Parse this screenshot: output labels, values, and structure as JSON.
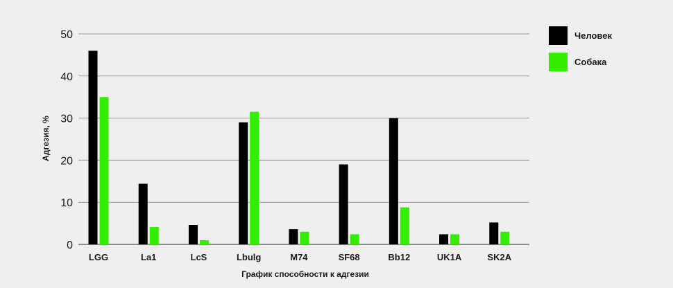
{
  "chart_data": {
    "type": "bar",
    "categories": [
      "LGG",
      "La1",
      "LcS",
      "Lbulg",
      "M74",
      "SF68",
      "Bb12",
      "UK1A",
      "SK2A"
    ],
    "series": [
      {
        "name": "Человек",
        "color": "#000000",
        "values": [
          46,
          14.4,
          4.6,
          29,
          3.6,
          19,
          30,
          2.4,
          5.2
        ]
      },
      {
        "name": "Собака",
        "color": "#33ee00",
        "values": [
          35,
          4.1,
          1.0,
          31.5,
          3.0,
          2.4,
          8.8,
          2.4,
          3.0
        ]
      }
    ],
    "xlabel": "График способности к адгезии",
    "ylabel": "Адгезия, %",
    "ylim": [
      0,
      50
    ],
    "yticks": [
      "0",
      "10",
      "20",
      "30",
      "40",
      "50"
    ],
    "grid": true,
    "legend_position": "top-right"
  }
}
